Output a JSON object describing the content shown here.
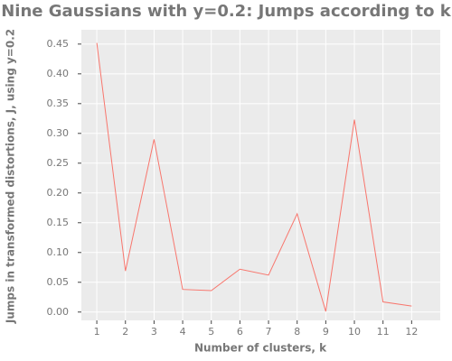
{
  "chart_data": {
    "type": "line",
    "title": "Nine Gaussians with y=0.2: Jumps according to k",
    "x_label": "Number of clusters, k",
    "y_label": "Jumps in transformed distortions, J, using y=0.2",
    "x": [
      1,
      2,
      3,
      4,
      5,
      6,
      7,
      8,
      9,
      10,
      11,
      12
    ],
    "series": [
      {
        "color": "#f8766d",
        "values": [
          0.452,
          0.069,
          0.29,
          0.038,
          0.036,
          0.072,
          0.062,
          0.165,
          0.001,
          0.323,
          0.017,
          0.01
        ]
      }
    ],
    "xlim": [
      0.46,
      13.0
    ],
    "xticks": [
      1,
      2,
      3,
      4,
      5,
      6,
      7,
      8,
      9,
      10,
      11,
      12
    ],
    "ylim": [
      -0.014,
      0.474
    ],
    "yticks": [
      {
        "value": 0,
        "label": "0.00"
      },
      0.05,
      {
        "value": 0.1,
        "label": "0.10"
      },
      0.15,
      {
        "value": 0.2,
        "label": "0.20"
      },
      0.25,
      {
        "value": 0.3,
        "label": "0.30"
      },
      0.35,
      {
        "value": 0.4,
        "label": "0.40"
      },
      0.45
    ],
    "grid": true
  }
}
